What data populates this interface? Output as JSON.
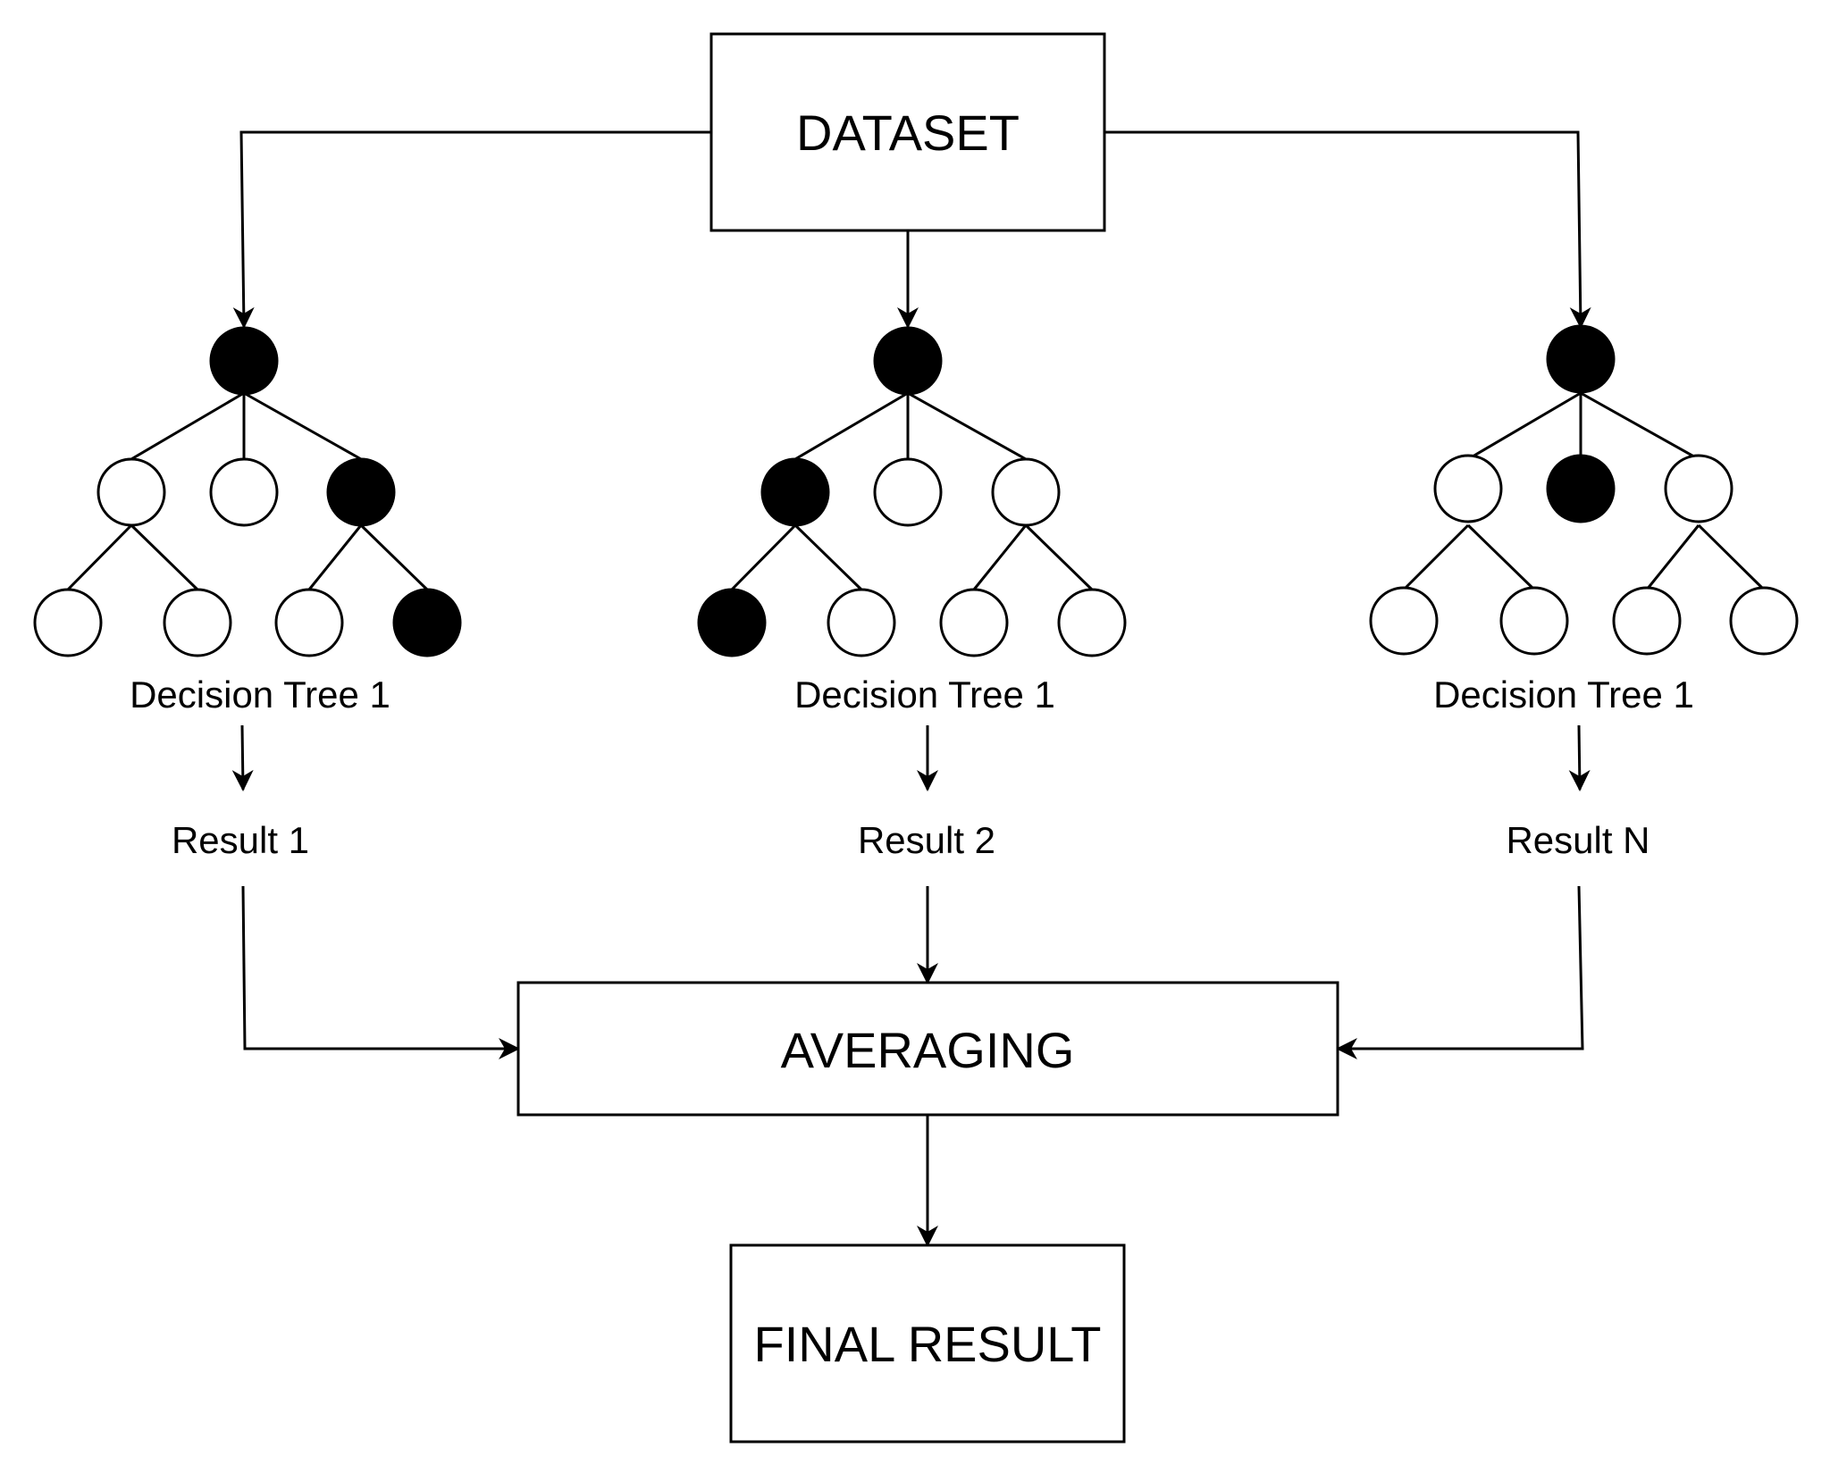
{
  "colors": {
    "line": "#000000",
    "filled_node": "#000000",
    "empty_node": "#ffffff",
    "background": "#ffffff"
  },
  "boxes": {
    "dataset": "DATASET",
    "averaging": "AVERAGING",
    "final_result": "FINAL RESULT"
  },
  "trees": [
    {
      "label": "Decision Tree 1",
      "result": "Result 1"
    },
    {
      "label": "Decision Tree 1",
      "result": "Result 2"
    },
    {
      "label": "Decision Tree 1",
      "result": "Result N"
    }
  ]
}
